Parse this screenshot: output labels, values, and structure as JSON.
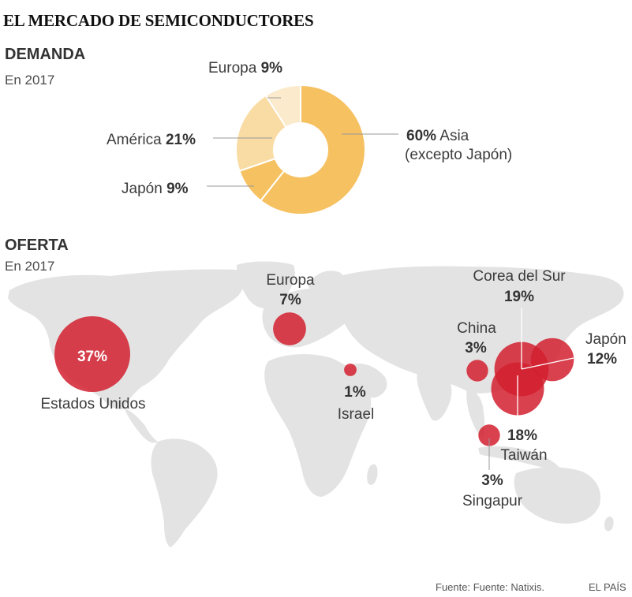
{
  "title": "EL MERCADO DE SEMICONDUCTORES",
  "demanda": {
    "heading": "DEMANDA",
    "subtitle": "En 2017"
  },
  "oferta": {
    "heading": "OFERTA",
    "subtitle": "En 2017"
  },
  "source": "Fuente: Fuente: Natixis.",
  "credit": "EL PAÍS",
  "chart_data": [
    {
      "type": "pie",
      "style": "donut",
      "categories": [
        "Asia (excepto Japón)",
        "Japón",
        "América",
        "Europa"
      ],
      "values": [
        60,
        9,
        21,
        9
      ],
      "colors": [
        "#f6c160",
        "#f6c160",
        "#f9dca4",
        "#fbeacb"
      ],
      "labels": [
        {
          "name": "Asia",
          "pct": "60%",
          "note": "(excepto Japón)"
        },
        {
          "name": "Japón",
          "pct": "9%"
        },
        {
          "name": "América",
          "pct": "21%"
        },
        {
          "name": "Europa",
          "pct": "9%"
        }
      ]
    },
    {
      "type": "scatter",
      "style": "bubble map",
      "bubble_color": "#d2202f",
      "points": [
        {
          "name": "Estados Unidos",
          "value": 37,
          "label": "37%",
          "lon": -97,
          "lat": 39
        },
        {
          "name": "Europa",
          "value": 7,
          "label": "7%",
          "lon": 8,
          "lat": 49
        },
        {
          "name": "Israel",
          "value": 1,
          "label": "1%",
          "lon": 35,
          "lat": 31
        },
        {
          "name": "China",
          "value": 3,
          "label": "3%",
          "lon": 113,
          "lat": 30
        },
        {
          "name": "Corea del Sur",
          "value": 19,
          "label": "19%",
          "lon": 127,
          "lat": 36
        },
        {
          "name": "Japón",
          "value": 12,
          "label": "12%",
          "lon": 139,
          "lat": 36
        },
        {
          "name": "Taiwán",
          "value": 18,
          "label": "18%",
          "lon": 121,
          "lat": 24
        },
        {
          "name": "Singapur",
          "value": 3,
          "label": "3%",
          "lon": 104,
          "lat": 1
        }
      ]
    }
  ]
}
